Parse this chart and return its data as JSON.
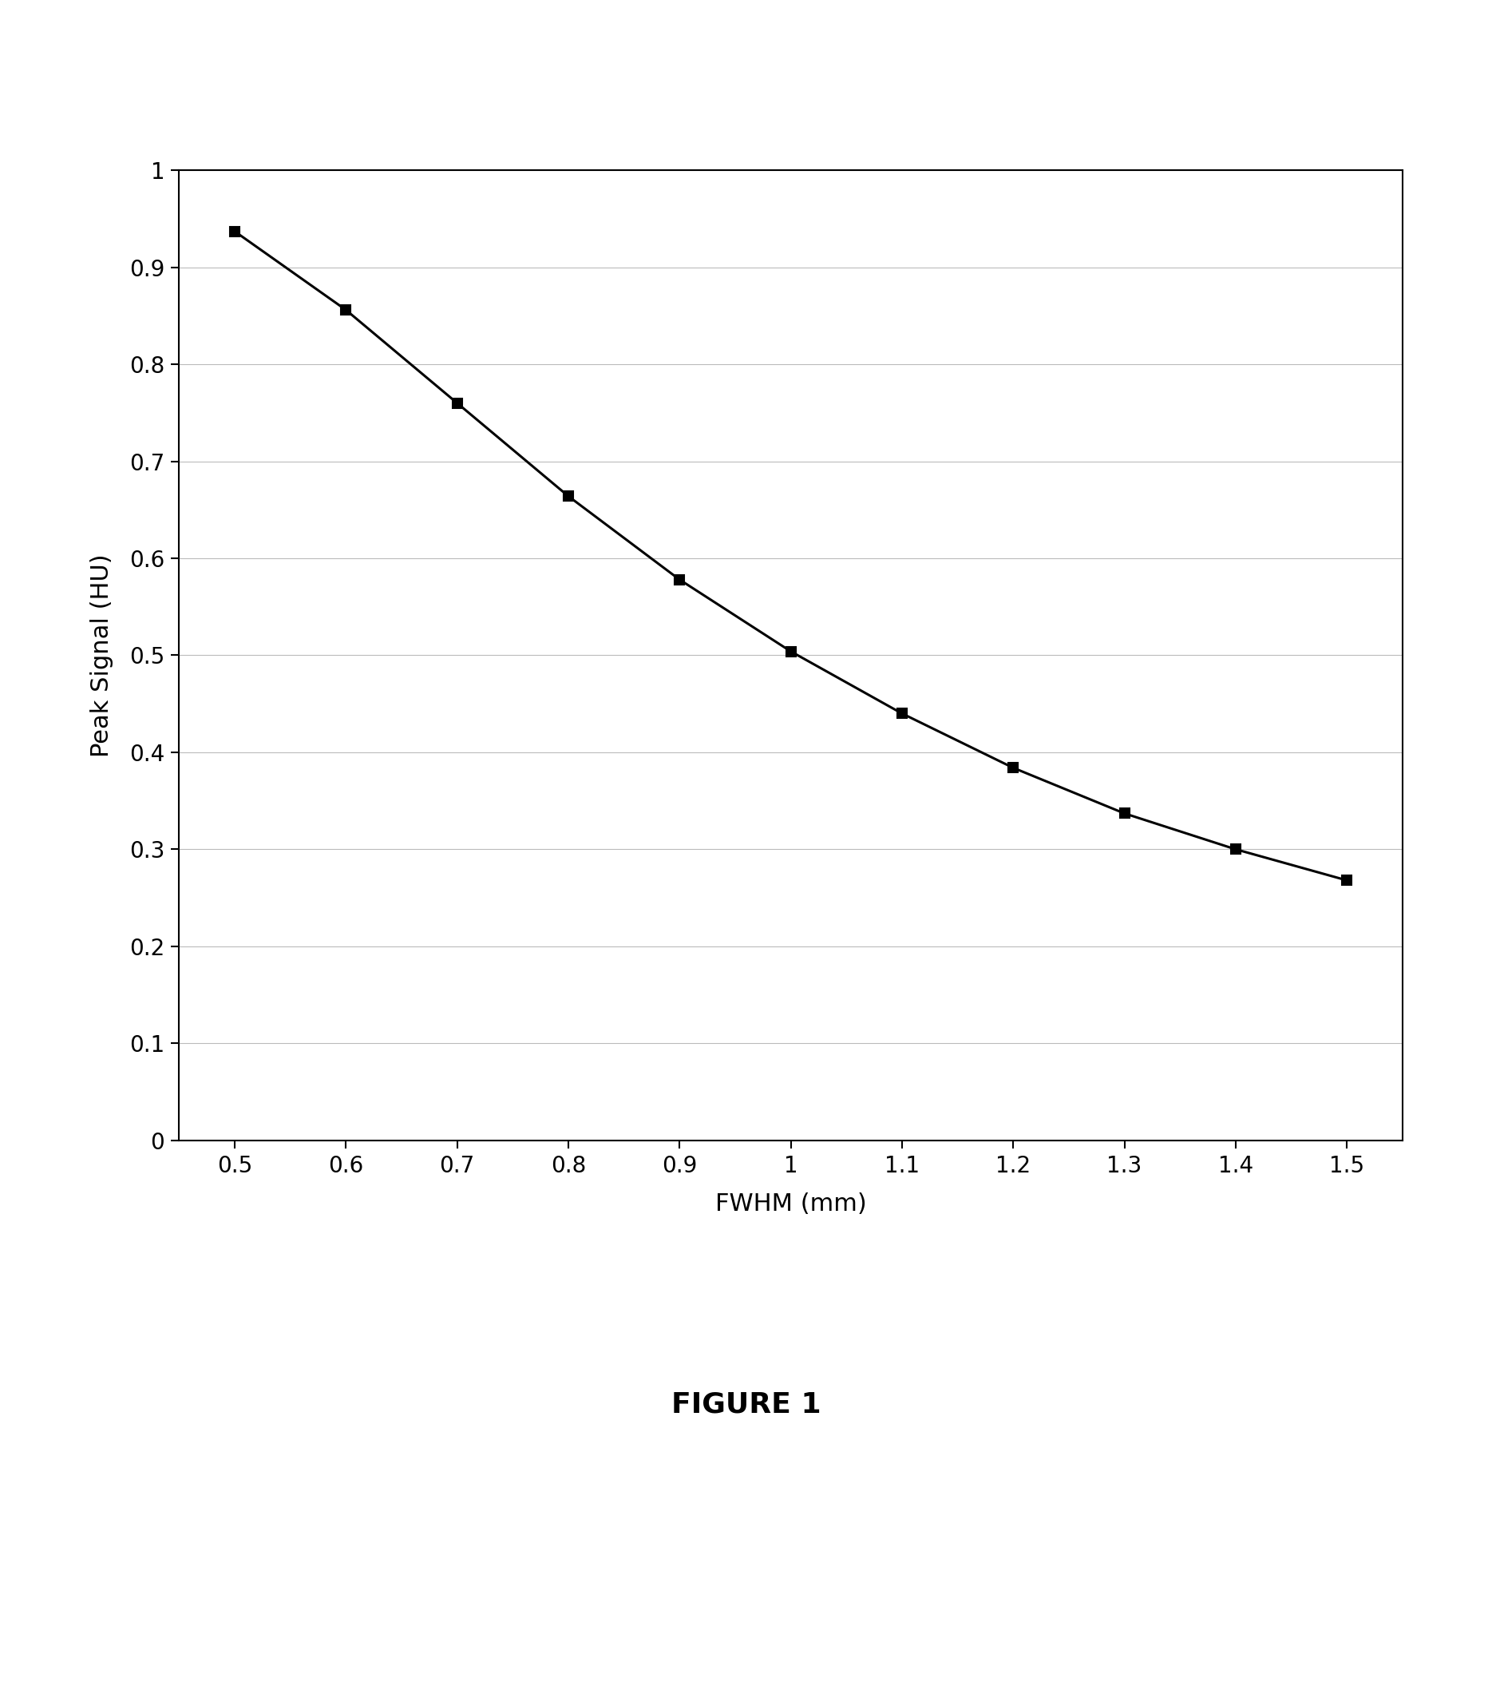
{
  "x": [
    0.5,
    0.6,
    0.7,
    0.8,
    0.9,
    1.0,
    1.1,
    1.2,
    1.3,
    1.4,
    1.5
  ],
  "y": [
    0.937,
    0.856,
    0.76,
    0.664,
    0.578,
    0.504,
    0.44,
    0.384,
    0.337,
    0.3,
    0.268
  ],
  "xlabel": "FWHM (mm)",
  "ylabel": "Peak Signal (HU)",
  "xlim": [
    0.45,
    1.55
  ],
  "ylim": [
    0,
    1.0
  ],
  "xticks": [
    0.5,
    0.6,
    0.7,
    0.8,
    0.9,
    1.0,
    1.1,
    1.2,
    1.3,
    1.4,
    1.5
  ],
  "yticks": [
    0,
    0.1,
    0.2,
    0.3,
    0.4,
    0.5,
    0.6,
    0.7,
    0.8,
    0.9,
    1.0
  ],
  "figure_label": "FIGURE 1",
  "line_color": "#000000",
  "marker": "s",
  "marker_color": "#000000",
  "marker_size": 9,
  "line_width": 2.2,
  "background_color": "#ffffff",
  "grid_color": "#bbbbbb",
  "tick_label_fontsize": 20,
  "axis_label_fontsize": 22,
  "figure_label_fontsize": 26
}
